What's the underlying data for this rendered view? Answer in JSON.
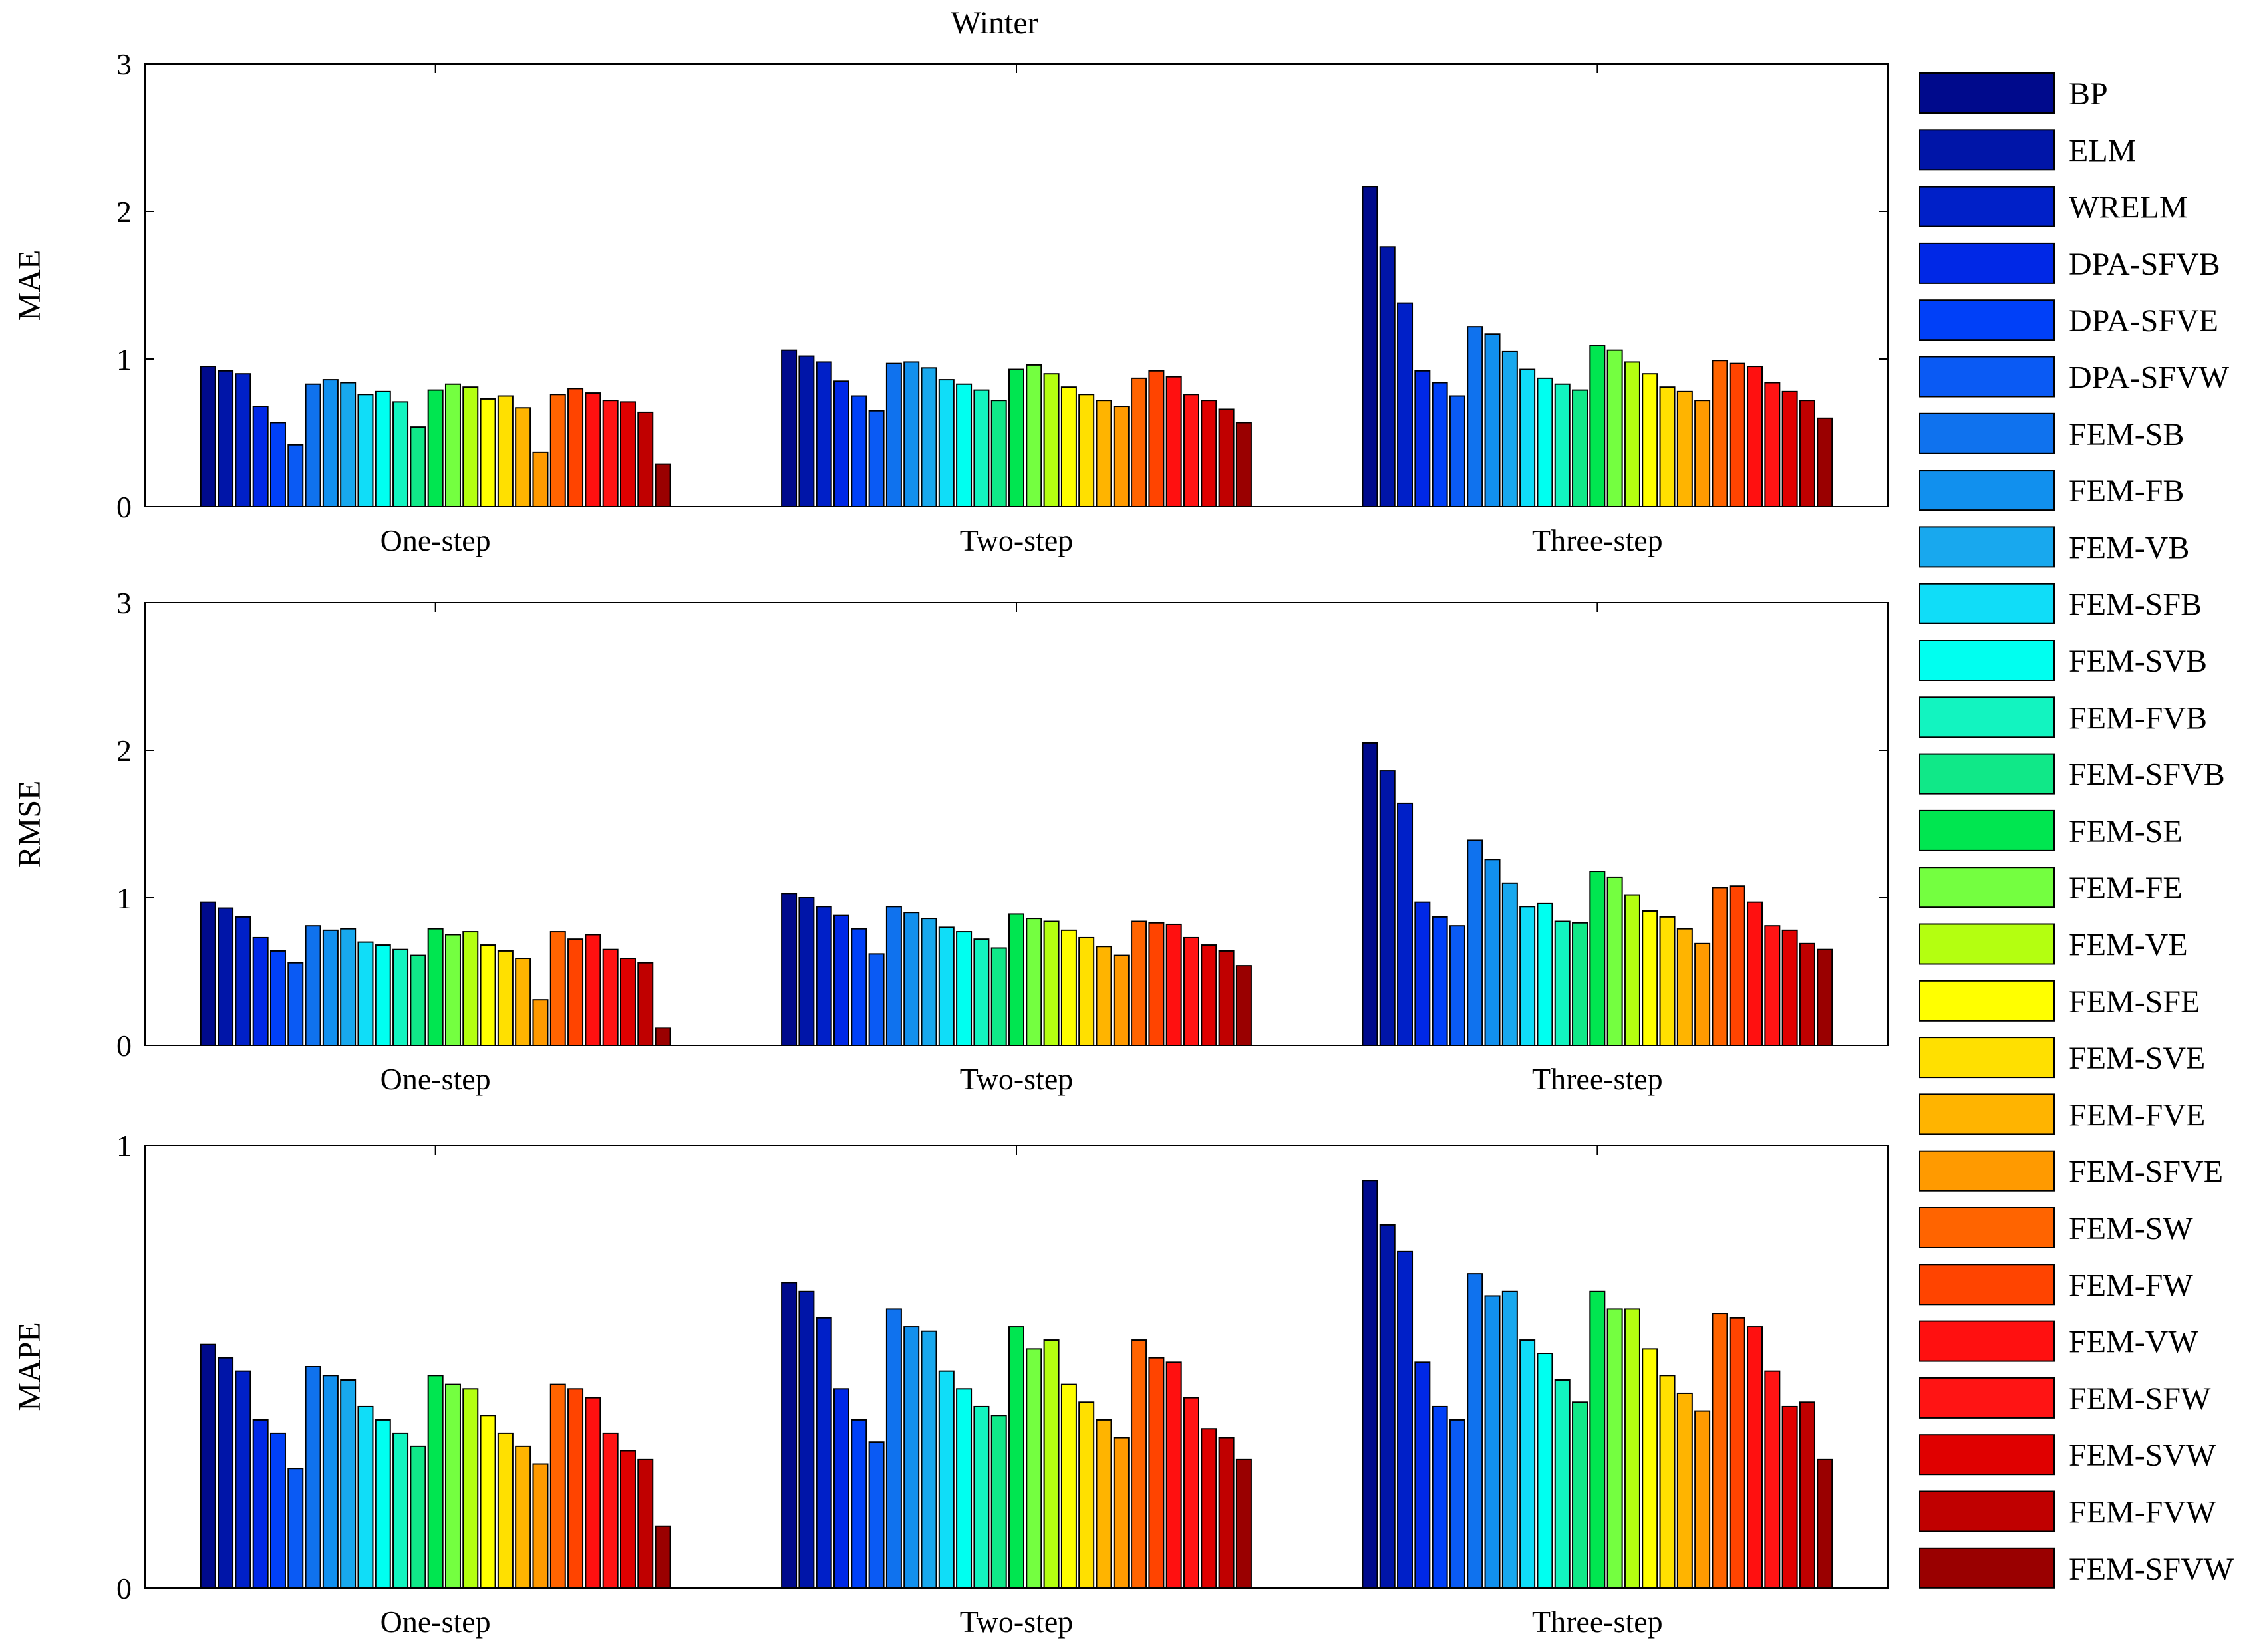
{
  "chart_data": [
    {
      "type": "bar",
      "title": "Winter",
      "ylabel": "MAE",
      "xlabel": "",
      "ylim": [
        0,
        3
      ],
      "yticks": [
        "0",
        "1",
        "2",
        "3"
      ],
      "categories": [
        "One-step",
        "Two-step",
        "Three-step"
      ],
      "values": [
        [
          0.95,
          0.92,
          0.9,
          0.68,
          0.57,
          0.42,
          0.83,
          0.86,
          0.84,
          0.76,
          0.78,
          0.71,
          0.54,
          0.79,
          0.83,
          0.81,
          0.73,
          0.75,
          0.67,
          0.37,
          0.76,
          0.8,
          0.77,
          0.72,
          0.71,
          0.64,
          0.29
        ],
        [
          1.06,
          1.02,
          0.98,
          0.85,
          0.75,
          0.65,
          0.97,
          0.98,
          0.94,
          0.86,
          0.83,
          0.79,
          0.72,
          0.93,
          0.96,
          0.9,
          0.81,
          0.76,
          0.72,
          0.68,
          0.87,
          0.92,
          0.88,
          0.76,
          0.72,
          0.66,
          0.57
        ],
        [
          2.17,
          1.76,
          1.38,
          0.92,
          0.84,
          0.75,
          1.22,
          1.17,
          1.05,
          0.93,
          0.87,
          0.83,
          0.79,
          1.09,
          1.06,
          0.98,
          0.9,
          0.81,
          0.78,
          0.72,
          0.99,
          0.97,
          0.95,
          0.84,
          0.78,
          0.72,
          0.6
        ]
      ]
    },
    {
      "type": "bar",
      "title": "",
      "ylabel": "RMSE",
      "xlabel": "",
      "ylim": [
        0,
        3
      ],
      "yticks": [
        "0",
        "1",
        "2",
        "3"
      ],
      "categories": [
        "One-step",
        "Two-step",
        "Three-step"
      ],
      "values": [
        [
          0.97,
          0.93,
          0.87,
          0.73,
          0.64,
          0.56,
          0.81,
          0.78,
          0.79,
          0.7,
          0.68,
          0.65,
          0.61,
          0.79,
          0.75,
          0.77,
          0.68,
          0.64,
          0.59,
          0.31,
          0.77,
          0.72,
          0.75,
          0.65,
          0.59,
          0.56,
          0.12
        ],
        [
          1.03,
          1.0,
          0.94,
          0.88,
          0.79,
          0.62,
          0.94,
          0.9,
          0.86,
          0.8,
          0.77,
          0.72,
          0.66,
          0.89,
          0.86,
          0.84,
          0.78,
          0.73,
          0.67,
          0.61,
          0.84,
          0.83,
          0.82,
          0.73,
          0.68,
          0.64,
          0.54
        ],
        [
          2.05,
          1.86,
          1.64,
          0.97,
          0.87,
          0.81,
          1.39,
          1.26,
          1.1,
          0.94,
          0.96,
          0.84,
          0.83,
          1.18,
          1.14,
          1.02,
          0.91,
          0.87,
          0.79,
          0.69,
          1.07,
          1.08,
          0.97,
          0.81,
          0.78,
          0.69,
          0.65
        ]
      ]
    },
    {
      "type": "bar",
      "title": "",
      "ylabel": "MAPE",
      "xlabel": "",
      "ylim": [
        0,
        1
      ],
      "yticks": [
        "0",
        "1"
      ],
      "categories": [
        "One-step",
        "Two-step",
        "Three-step"
      ],
      "values": [
        [
          0.55,
          0.52,
          0.49,
          0.38,
          0.35,
          0.27,
          0.5,
          0.48,
          0.47,
          0.41,
          0.38,
          0.35,
          0.32,
          0.48,
          0.46,
          0.45,
          0.39,
          0.35,
          0.32,
          0.28,
          0.46,
          0.45,
          0.43,
          0.35,
          0.31,
          0.29,
          0.14
        ],
        [
          0.69,
          0.67,
          0.61,
          0.45,
          0.38,
          0.33,
          0.63,
          0.59,
          0.58,
          0.49,
          0.45,
          0.41,
          0.39,
          0.59,
          0.54,
          0.56,
          0.46,
          0.42,
          0.38,
          0.34,
          0.56,
          0.52,
          0.51,
          0.43,
          0.36,
          0.34,
          0.29
        ],
        [
          0.92,
          0.82,
          0.76,
          0.51,
          0.41,
          0.38,
          0.71,
          0.66,
          0.67,
          0.56,
          0.53,
          0.47,
          0.42,
          0.67,
          0.63,
          0.63,
          0.54,
          0.48,
          0.44,
          0.4,
          0.62,
          0.61,
          0.59,
          0.49,
          0.41,
          0.42,
          0.29
        ]
      ]
    }
  ],
  "legend": {
    "labels": [
      "BP",
      "ELM",
      "WRELM",
      "DPA-SFVB",
      "DPA-SFVE",
      "DPA-SFVW",
      "FEM-SB",
      "FEM-FB",
      "FEM-VB",
      "FEM-SFB",
      "FEM-SVB",
      "FEM-FVB",
      "FEM-SFVB",
      "FEM-SE",
      "FEM-FE",
      "FEM-VE",
      "FEM-SFE",
      "FEM-SVE",
      "FEM-FVE",
      "FEM-SFVE",
      "FEM-SW",
      "FEM-FW",
      "FEM-VW",
      "FEM-SFW",
      "FEM-SVW",
      "FEM-FVW",
      "FEM-SFVW"
    ],
    "colors": [
      "#000a8c",
      "#0015a8",
      "#0020c8",
      "#0028e6",
      "#0040f8",
      "#0a5af4",
      "#0f72ee",
      "#1190ee",
      "#18a8ee",
      "#10ddf8",
      "#00fff0",
      "#12f4c0",
      "#10e888",
      "#00e650",
      "#74ff40",
      "#b4ff10",
      "#ffff00",
      "#ffe000",
      "#ffb400",
      "#ff9a00",
      "#ff6400",
      "#ff4400",
      "#ff1010",
      "#ff1414",
      "#e00000",
      "#c00000",
      "#9a0000"
    ]
  }
}
